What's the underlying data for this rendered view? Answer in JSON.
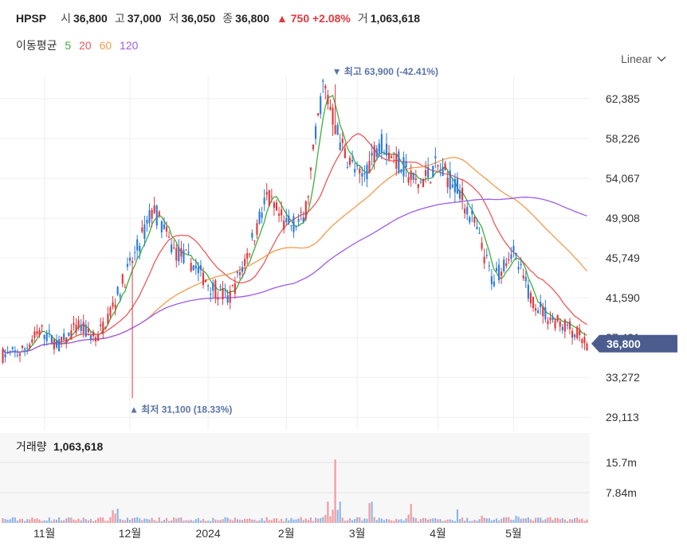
{
  "header": {
    "symbol": "HPSP",
    "open_label": "시",
    "open": "36,800",
    "high_label": "고",
    "high": "37,000",
    "low_label": "저",
    "low": "36,050",
    "close_label": "종",
    "close": "36,800",
    "change": "▲ 750 +2.08%",
    "volume_label": "거",
    "volume": "1,063,618"
  },
  "ma_legend": {
    "title": "이동평균",
    "items": [
      {
        "label": "5",
        "color": "#3fae3c"
      },
      {
        "label": "20",
        "color": "#ea5a5a"
      },
      {
        "label": "60",
        "color": "#f29b50"
      },
      {
        "label": "120",
        "color": "#9d5be8"
      }
    ]
  },
  "scale_select": {
    "value": "Linear",
    "icon": "chevron-down-icon"
  },
  "colors": {
    "up": "#e0393e",
    "down": "#2d7bd8",
    "price_tag": "#4a5d8e",
    "grid": "#efefef"
  },
  "chart_data": {
    "type": "candlestick",
    "price_axis": {
      "ticks": [
        "62,385",
        "58,226",
        "54,067",
        "49,908",
        "45,749",
        "41,590",
        "37,431",
        "33,272",
        "29,113"
      ],
      "ylim": [
        27800,
        64800
      ],
      "scale": "linear"
    },
    "last_price": "36,800",
    "high_marker": {
      "text": "최고 63,900 (-42.41%)",
      "value": 63900
    },
    "low_marker": {
      "text": "최저 31,100 (18.33%)",
      "value": 31100
    },
    "x_ticks": [
      "11월",
      "12월",
      "2024",
      "2월",
      "3월",
      "4월",
      "5월"
    ],
    "volume_panel": {
      "title": "거래량",
      "value": "1,063,618",
      "ticks": [
        "15.7m",
        "7.84m"
      ],
      "ymax": 18000000
    },
    "moving_averages": [
      "5",
      "20",
      "60",
      "120"
    ],
    "anchors": [
      [
        35600,
        35600
      ],
      [
        32800,
        35900
      ],
      [
        33100,
        38200
      ],
      [
        36200,
        36600
      ],
      [
        36900,
        38600
      ],
      [
        38600,
        37300
      ],
      [
        36900,
        41500
      ],
      [
        46500,
        46000
      ],
      [
        45800,
        51000
      ],
      [
        48100,
        46700
      ],
      [
        46800,
        45300
      ],
      [
        44800,
        42900
      ],
      [
        42900,
        41400
      ],
      [
        43100,
        46200
      ],
      [
        46300,
        52100
      ],
      [
        52000,
        49100
      ],
      [
        48800,
        49700
      ],
      [
        49800,
        63900
      ],
      [
        59700,
        57300
      ],
      [
        57200,
        53800
      ],
      [
        53900,
        58100
      ],
      [
        57800,
        55800
      ],
      [
        55400,
        53300
      ],
      [
        53200,
        55300
      ],
      [
        55000,
        53600
      ],
      [
        53800,
        49400
      ],
      [
        49300,
        43300
      ],
      [
        43400,
        46700
      ],
      [
        46600,
        41700
      ],
      [
        41700,
        39500
      ],
      [
        39400,
        38600
      ],
      [
        38600,
        36800
      ]
    ]
  }
}
